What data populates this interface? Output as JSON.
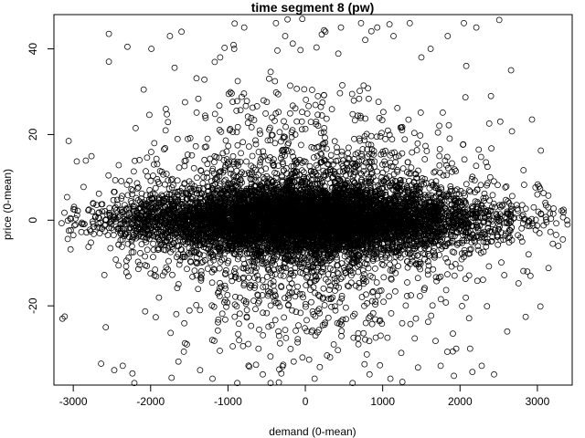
{
  "chart_data": {
    "type": "scatter",
    "title": "time segment 8 (pw)",
    "xlabel": "demand (0-mean)",
    "ylabel": "price (0-mean)",
    "xlim": [
      -3250,
      3450
    ],
    "ylim": [
      -38.5,
      48
    ],
    "x_ticks": [
      -3000,
      -2000,
      -1000,
      0,
      1000,
      2000,
      3000
    ],
    "x_tick_labels": [
      "-3000",
      "-2000",
      "-1000",
      "0",
      "1000",
      "2000",
      "3000"
    ],
    "y_ticks": [
      -20,
      0,
      20,
      40
    ],
    "y_tick_labels": [
      "-20",
      "0",
      "20",
      "40"
    ],
    "grid": false,
    "marker": "open-circle",
    "series": [
      {
        "distribution": {
          "x_range": [
            -3200,
            3400
          ],
          "x_center": 0,
          "x_sd": 1150,
          "core_y_range": [
            -10,
            10
          ],
          "y_range": [
            -38,
            47
          ],
          "y_center": 0
        },
        "points": [
          [
            -3140,
            -23
          ],
          [
            -3110,
            -22.5
          ],
          [
            -3060,
            18.5
          ],
          [
            -3000,
            -3.5
          ],
          [
            -2980,
            2.5
          ],
          [
            -2640,
            -33.5
          ],
          [
            -2580,
            -25
          ],
          [
            -2540,
            43.5
          ],
          [
            -2540,
            37
          ],
          [
            -2470,
            -35
          ],
          [
            -2360,
            -34
          ],
          [
            -2300,
            40.5
          ],
          [
            -2210,
            -38
          ],
          [
            -2090,
            30.5
          ],
          [
            -1990,
            40
          ],
          [
            -1750,
            43
          ],
          [
            -1640,
            -33
          ],
          [
            -1600,
            44
          ],
          [
            -1360,
            -35
          ],
          [
            -1200,
            -37
          ],
          [
            -1100,
            38
          ],
          [
            -920,
            40
          ],
          [
            -880,
            -38
          ],
          [
            -790,
            45
          ],
          [
            -550,
            -36
          ],
          [
            -450,
            -38
          ],
          [
            -380,
            46
          ],
          [
            -260,
            43
          ],
          [
            -150,
            -33
          ],
          [
            -40,
            47
          ],
          [
            120,
            -37
          ],
          [
            260,
            44
          ],
          [
            320,
            -32
          ],
          [
            460,
            45
          ],
          [
            610,
            -38
          ],
          [
            720,
            46
          ],
          [
            830,
            -36
          ],
          [
            930,
            45
          ],
          [
            1100,
            -37
          ],
          [
            1140,
            43
          ],
          [
            1240,
            -31
          ],
          [
            1350,
            46
          ],
          [
            1500,
            38
          ],
          [
            1620,
            40
          ],
          [
            1750,
            -34
          ],
          [
            1840,
            43
          ],
          [
            1950,
            -30
          ],
          [
            2050,
            46
          ],
          [
            2080,
            36
          ],
          [
            2130,
            -30
          ],
          [
            2210,
            45
          ],
          [
            2280,
            -34
          ],
          [
            2400,
            29
          ],
          [
            2440,
            -36
          ],
          [
            2520,
            23
          ],
          [
            2610,
            -26
          ],
          [
            2660,
            35
          ],
          [
            2870,
            -12
          ],
          [
            2910,
            -13
          ],
          [
            2930,
            23.5
          ],
          [
            3000,
            6
          ],
          [
            3140,
            3
          ],
          [
            3200,
            -5.5
          ],
          [
            3270,
            -6
          ],
          [
            3330,
            -4.5
          ],
          [
            3390,
            -1
          ]
        ]
      }
    ]
  }
}
